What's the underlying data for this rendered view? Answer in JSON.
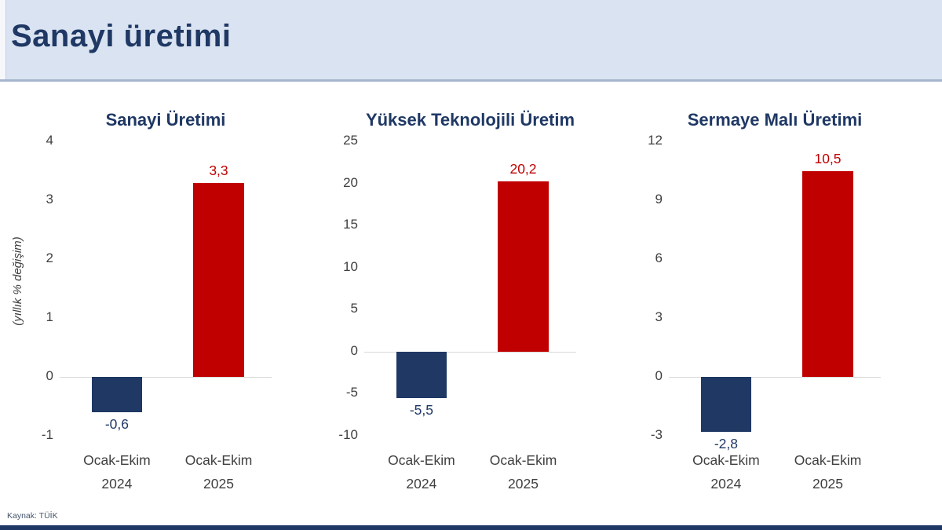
{
  "header": {
    "title": "Sanayi üretimi"
  },
  "source": "Kaynak: TÜİK",
  "colors": {
    "navy": "#1f3864",
    "red": "#c00000",
    "header_bg": "#dae3f1",
    "tick_text": "#3f3f3f",
    "zero_line": "#d9d9d9"
  },
  "chart_data": [
    {
      "type": "bar",
      "title": "Sanayi Üretimi",
      "ylabel": "(yıllık % değişim)",
      "categories": [
        {
          "line1": "Ocak-Ekim",
          "line2": "2024"
        },
        {
          "line1": "Ocak-Ekim",
          "line2": "2025"
        }
      ],
      "values": [
        -0.6,
        3.3
      ],
      "value_labels": [
        "-0,6",
        "3,3"
      ],
      "bar_colors": [
        "#1f3864",
        "#c00000"
      ],
      "label_colors": [
        "#1f3864",
        "#c00000"
      ],
      "ticks": [
        4,
        3,
        2,
        1,
        0,
        -1
      ],
      "ylim": [
        -1,
        4
      ],
      "grid": false,
      "legend": "none"
    },
    {
      "type": "bar",
      "title": "Yüksek Teknolojili Üretim",
      "ylabel": "",
      "categories": [
        {
          "line1": "Ocak-Ekim",
          "line2": "2024"
        },
        {
          "line1": "Ocak-Ekim",
          "line2": "2025"
        }
      ],
      "values": [
        -5.5,
        20.2
      ],
      "value_labels": [
        "-5,5",
        "20,2"
      ],
      "bar_colors": [
        "#1f3864",
        "#c00000"
      ],
      "label_colors": [
        "#1f3864",
        "#c00000"
      ],
      "ticks": [
        25,
        20,
        15,
        10,
        5,
        0,
        -5,
        -10
      ],
      "ylim": [
        -10,
        25
      ],
      "grid": false,
      "legend": "none"
    },
    {
      "type": "bar",
      "title": "Sermaye Malı Üretimi",
      "ylabel": "",
      "categories": [
        {
          "line1": "Ocak-Ekim",
          "line2": "2024"
        },
        {
          "line1": "Ocak-Ekim",
          "line2": "2025"
        }
      ],
      "values": [
        -2.8,
        10.5
      ],
      "value_labels": [
        "-2,8",
        "10,5"
      ],
      "bar_colors": [
        "#1f3864",
        "#c00000"
      ],
      "label_colors": [
        "#1f3864",
        "#c00000"
      ],
      "ticks": [
        12,
        9,
        6,
        3,
        0,
        -3
      ],
      "ylim": [
        -3,
        12
      ],
      "grid": false,
      "legend": "none"
    }
  ]
}
